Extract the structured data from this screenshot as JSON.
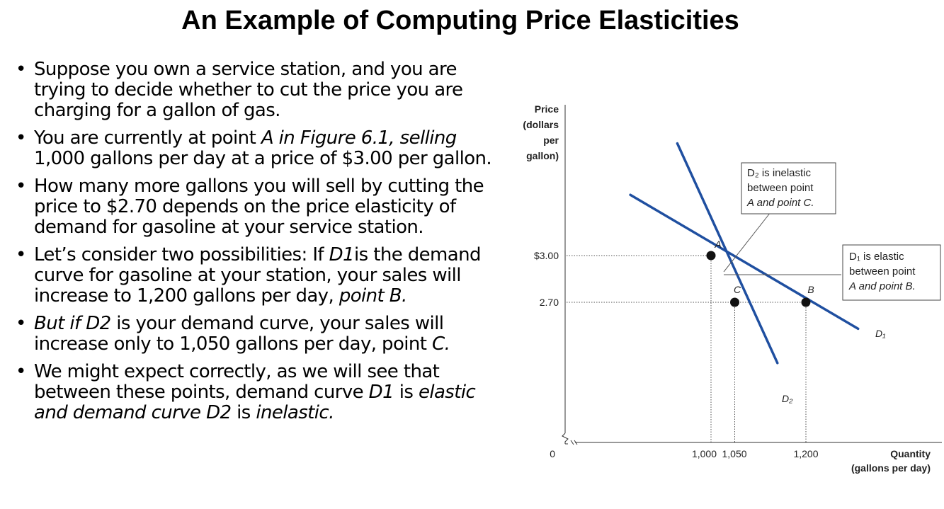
{
  "slide": {
    "title": "An Example of Computing Price Elasticities",
    "bullets": [
      [
        {
          "t": "Suppose you own a service station, and you are trying to decide whether to cut the price you are charging for a gallon of gas."
        }
      ],
      [
        {
          "t": "You are currently at point "
        },
        {
          "t": "A in Figure 6.1, selling",
          "i": true
        },
        {
          "t": " 1,000 gallons per day at a price of $3.00 per gallon."
        }
      ],
      [
        {
          "t": "How many more gallons you will sell by cutting the price to $2.70 depends on the price elasticity of demand for gasoline at your service station."
        }
      ],
      [
        {
          "t": "Let’s consider two possibilities: If "
        },
        {
          "t": "D1",
          "i": true
        },
        {
          "t": "is the demand curve for  gasoline at your station, your sales will increase to 1,200 gallons per day, "
        },
        {
          "t": "point B.",
          "i": true
        }
      ],
      [
        {
          "t": "But if D2",
          "i": true
        },
        {
          "t": " is your demand curve, your sales will increase only to 1,050 gallons per day, point "
        },
        {
          "t": "C.",
          "i": true
        }
      ],
      [
        {
          "t": "We might expect correctly, as we will see that between these points, demand curve "
        },
        {
          "t": "D1",
          "i": true
        },
        {
          "t": " is "
        },
        {
          "t": "elastic and demand curve D2",
          "i": true
        },
        {
          "t": " is "
        },
        {
          "t": "inelastic.",
          "i": true
        }
      ]
    ]
  },
  "chart_data": {
    "type": "line",
    "ylabel": [
      "Price",
      "(dollars",
      "per",
      "gallon)"
    ],
    "xlabel": [
      "Quantity",
      "(gallons per day)"
    ],
    "origin_label": "0",
    "x_ticks": [
      {
        "value": 1000,
        "label": "1,000"
      },
      {
        "value": 1050,
        "label": "1,050"
      },
      {
        "value": 1200,
        "label": "1,200"
      }
    ],
    "y_ticks": [
      {
        "value": 3.0,
        "label": "$3.00"
      },
      {
        "value": 2.7,
        "label": "2.70"
      }
    ],
    "xlim": [
      850,
      1420
    ],
    "ylim": [
      2.4,
      3.9
    ],
    "axis_break": true,
    "series": [
      {
        "name": "D₁",
        "sub": "1",
        "x": [
          830,
          1310
        ],
        "y": [
          3.39,
          2.53
        ],
        "color": "#1f4fa0"
      },
      {
        "name": "D₂",
        "sub": "2",
        "x": [
          929,
          1140
        ],
        "y": [
          3.72,
          2.31
        ],
        "color": "#1f4fa0"
      }
    ],
    "points": [
      {
        "label": "A",
        "x": 1000,
        "y": 3.0
      },
      {
        "label": "C",
        "x": 1050,
        "y": 2.7
      },
      {
        "label": "B",
        "x": 1200,
        "y": 2.7
      }
    ],
    "annotations": [
      {
        "lines": [
          "D₂ is inelastic",
          "between point",
          "A and point C."
        ]
      },
      {
        "lines": [
          "D₁ is elastic",
          "between point",
          "A and point B."
        ]
      }
    ],
    "line_color": "#1f4fa0"
  }
}
